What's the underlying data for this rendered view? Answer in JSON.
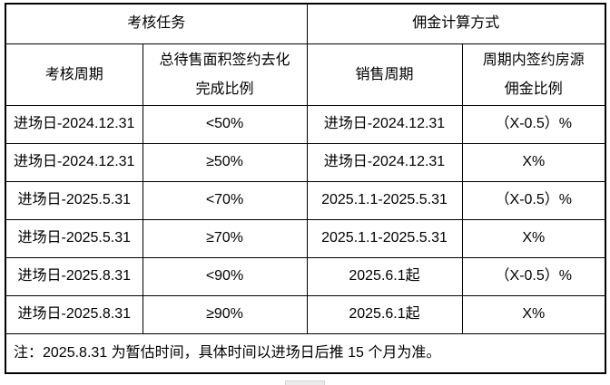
{
  "table": {
    "group_headers": [
      {
        "label": "考核任务"
      },
      {
        "label": "佣金计算方式"
      }
    ],
    "column_headers": [
      {
        "line1": "考核周期",
        "line2": ""
      },
      {
        "line1": "总待售面积签约去化",
        "line2": "完成比例"
      },
      {
        "line1": "销售周期",
        "line2": ""
      },
      {
        "line1": "周期内签约房源",
        "line2": "佣金比例"
      }
    ],
    "rows": [
      {
        "assessment_period": "进场日-2024.12.31",
        "completion_ratio": "<50%",
        "sales_period": "进场日-2024.12.31",
        "commission_rate": "（X-0.5）%"
      },
      {
        "assessment_period": "进场日-2024.12.31",
        "completion_ratio": "≥50%",
        "sales_period": "进场日-2024.12.31",
        "commission_rate": "X%"
      },
      {
        "assessment_period": "进场日-2025.5.31",
        "completion_ratio": "<70%",
        "sales_period": "2025.1.1-2025.5.31",
        "commission_rate": "（X-0.5）%"
      },
      {
        "assessment_period": "进场日-2025.5.31",
        "completion_ratio": "≥70%",
        "sales_period": "2025.1.1-2025.5.31",
        "commission_rate": "X%"
      },
      {
        "assessment_period": "进场日-2025.8.31",
        "completion_ratio": "<90%",
        "sales_period": "2025.6.1起",
        "commission_rate": "（X-0.5）%"
      },
      {
        "assessment_period": "进场日-2025.8.31",
        "completion_ratio": "≥90%",
        "sales_period": "2025.6.1起",
        "commission_rate": "X%"
      }
    ],
    "note": "注：2025.8.31 为暂估时间，具体时间以进场日后推 15 个月为准。",
    "colors": {
      "border": "#000000",
      "text": "#000000",
      "background": "#ffffff"
    }
  }
}
